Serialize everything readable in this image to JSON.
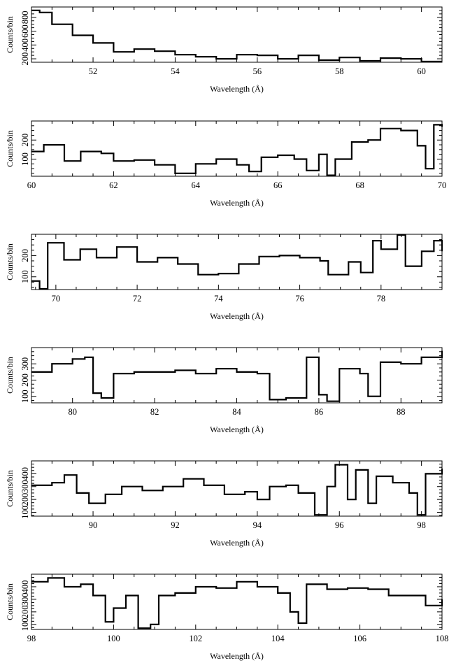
{
  "chart_data": [
    {
      "type": "line",
      "step": true,
      "xlabel": "Wavelength (Å)",
      "ylabel": "Counts/bin",
      "xlim": [
        50.5,
        60.5
      ],
      "ylim": [
        150,
        950
      ],
      "xticks": [
        52,
        54,
        56,
        58,
        60
      ],
      "yticks": [
        200,
        400,
        600,
        800
      ],
      "ytick_labels": [
        "200",
        "400",
        "600",
        "800"
      ],
      "series": [
        {
          "points": [
            [
              50.5,
              900
            ],
            [
              50.7,
              870
            ],
            [
              51.0,
              700
            ],
            [
              51.5,
              540
            ],
            [
              52.0,
              430
            ],
            [
              52.5,
              300
            ],
            [
              53.0,
              340
            ],
            [
              53.5,
              310
            ],
            [
              54.0,
              260
            ],
            [
              54.5,
              230
            ],
            [
              55.0,
              200
            ],
            [
              55.5,
              260
            ],
            [
              56.0,
              250
            ],
            [
              56.5,
              200
            ],
            [
              57.0,
              250
            ],
            [
              57.5,
              180
            ],
            [
              58.0,
              220
            ],
            [
              58.5,
              170
            ],
            [
              59.0,
              210
            ],
            [
              59.5,
              200
            ],
            [
              60.0,
              150
            ],
            [
              60.5,
              160
            ]
          ]
        }
      ]
    },
    {
      "type": "line",
      "step": true,
      "xlabel": "Wavelength (Å)",
      "ylabel": "Counts/bin",
      "xlim": [
        60,
        70
      ],
      "ylim": [
        10,
        300
      ],
      "xticks": [
        60,
        62,
        64,
        66,
        68,
        70
      ],
      "yticks": [
        100,
        200
      ],
      "ytick_labels": [
        "100",
        "200"
      ],
      "series": [
        {
          "points": [
            [
              60.0,
              140
            ],
            [
              60.3,
              175
            ],
            [
              60.8,
              90
            ],
            [
              61.2,
              140
            ],
            [
              61.7,
              130
            ],
            [
              62.0,
              90
            ],
            [
              62.5,
              95
            ],
            [
              63.0,
              70
            ],
            [
              63.5,
              25
            ],
            [
              64.0,
              75
            ],
            [
              64.5,
              100
            ],
            [
              65.0,
              70
            ],
            [
              65.3,
              35
            ],
            [
              65.6,
              110
            ],
            [
              66.0,
              120
            ],
            [
              66.4,
              100
            ],
            [
              66.7,
              40
            ],
            [
              67.0,
              125
            ],
            [
              67.2,
              15
            ],
            [
              67.4,
              100
            ],
            [
              67.8,
              190
            ],
            [
              68.2,
              200
            ],
            [
              68.5,
              260
            ],
            [
              69.0,
              250
            ],
            [
              69.4,
              170
            ],
            [
              69.6,
              50
            ],
            [
              69.8,
              280
            ],
            [
              70.0,
              270
            ]
          ]
        }
      ]
    },
    {
      "type": "line",
      "step": true,
      "xlabel": "Wavelength (Å)",
      "ylabel": "Counts/bin",
      "xlim": [
        69.4,
        79.5
      ],
      "ylim": [
        40,
        300
      ],
      "xticks": [
        70,
        72,
        74,
        76,
        78
      ],
      "yticks": [
        100,
        200
      ],
      "ytick_labels": [
        "100",
        "200"
      ],
      "series": [
        {
          "points": [
            [
              69.4,
              80
            ],
            [
              69.6,
              40
            ],
            [
              69.8,
              260
            ],
            [
              70.2,
              180
            ],
            [
              70.6,
              230
            ],
            [
              71.0,
              190
            ],
            [
              71.5,
              240
            ],
            [
              72.0,
              170
            ],
            [
              72.5,
              190
            ],
            [
              73.0,
              160
            ],
            [
              73.5,
              110
            ],
            [
              74.0,
              115
            ],
            [
              74.5,
              160
            ],
            [
              75.0,
              195
            ],
            [
              75.5,
              200
            ],
            [
              76.0,
              190
            ],
            [
              76.5,
              175
            ],
            [
              76.7,
              110
            ],
            [
              77.2,
              170
            ],
            [
              77.5,
              120
            ],
            [
              77.8,
              270
            ],
            [
              78.0,
              230
            ],
            [
              78.4,
              300
            ],
            [
              78.6,
              150
            ],
            [
              79.0,
              220
            ],
            [
              79.3,
              270
            ],
            [
              79.5,
              220
            ]
          ]
        }
      ]
    },
    {
      "type": "line",
      "step": true,
      "xlabel": "Wavelength (Å)",
      "ylabel": "Counts/bin",
      "xlim": [
        79,
        89
      ],
      "ylim": [
        60,
        400
      ],
      "xticks": [
        80,
        82,
        84,
        86,
        88
      ],
      "yticks": [
        100,
        200,
        300
      ],
      "ytick_labels": [
        "100",
        "200",
        "300"
      ],
      "series": [
        {
          "points": [
            [
              79.0,
              250
            ],
            [
              79.5,
              300
            ],
            [
              80.0,
              330
            ],
            [
              80.3,
              340
            ],
            [
              80.5,
              120
            ],
            [
              80.7,
              90
            ],
            [
              81.0,
              240
            ],
            [
              81.5,
              250
            ],
            [
              82.0,
              250
            ],
            [
              82.5,
              260
            ],
            [
              83.0,
              240
            ],
            [
              83.5,
              270
            ],
            [
              84.0,
              250
            ],
            [
              84.5,
              240
            ],
            [
              84.8,
              80
            ],
            [
              85.2,
              90
            ],
            [
              85.7,
              340
            ],
            [
              86.0,
              110
            ],
            [
              86.2,
              70
            ],
            [
              86.5,
              270
            ],
            [
              87.0,
              240
            ],
            [
              87.2,
              100
            ],
            [
              87.5,
              310
            ],
            [
              88.0,
              300
            ],
            [
              88.5,
              340
            ],
            [
              89.0,
              380
            ]
          ]
        }
      ]
    },
    {
      "type": "line",
      "step": true,
      "xlabel": "Wavelength (Å)",
      "ylabel": "Counts/bin",
      "xlim": [
        88.5,
        98.5
      ],
      "ylim": [
        70,
        500
      ],
      "xticks": [
        90,
        92,
        94,
        96,
        98
      ],
      "yticks": [
        100,
        200,
        300,
        400
      ],
      "ytick_labels": [
        "100",
        "200",
        "300",
        "400"
      ],
      "series": [
        {
          "points": [
            [
              88.5,
              310
            ],
            [
              89.0,
              330
            ],
            [
              89.3,
              390
            ],
            [
              89.6,
              250
            ],
            [
              89.9,
              170
            ],
            [
              90.3,
              240
            ],
            [
              90.7,
              300
            ],
            [
              91.2,
              270
            ],
            [
              91.7,
              300
            ],
            [
              92.2,
              360
            ],
            [
              92.7,
              310
            ],
            [
              93.2,
              240
            ],
            [
              93.7,
              260
            ],
            [
              94.0,
              200
            ],
            [
              94.3,
              300
            ],
            [
              94.7,
              310
            ],
            [
              95.0,
              250
            ],
            [
              95.4,
              80
            ],
            [
              95.7,
              300
            ],
            [
              95.9,
              470
            ],
            [
              96.2,
              200
            ],
            [
              96.4,
              430
            ],
            [
              96.7,
              170
            ],
            [
              96.9,
              380
            ],
            [
              97.3,
              330
            ],
            [
              97.7,
              250
            ],
            [
              97.9,
              80
            ],
            [
              98.1,
              400
            ],
            [
              98.5,
              440
            ]
          ]
        }
      ]
    },
    {
      "type": "line",
      "step": true,
      "xlabel": "Wavelength (Å)",
      "ylabel": "Counts/bin",
      "xlim": [
        98,
        108
      ],
      "ylim": [
        60,
        500
      ],
      "xticks": [
        98,
        100,
        102,
        104,
        106,
        108
      ],
      "yticks": [
        100,
        200,
        300,
        400
      ],
      "ytick_labels": [
        "100",
        "200",
        "300",
        "400"
      ],
      "series": [
        {
          "points": [
            [
              98.0,
              440
            ],
            [
              98.4,
              470
            ],
            [
              98.8,
              400
            ],
            [
              99.2,
              420
            ],
            [
              99.5,
              330
            ],
            [
              99.8,
              120
            ],
            [
              100.0,
              230
            ],
            [
              100.3,
              330
            ],
            [
              100.6,
              70
            ],
            [
              100.9,
              100
            ],
            [
              101.1,
              330
            ],
            [
              101.5,
              350
            ],
            [
              102.0,
              400
            ],
            [
              102.5,
              390
            ],
            [
              103.0,
              440
            ],
            [
              103.5,
              400
            ],
            [
              104.0,
              350
            ],
            [
              104.3,
              200
            ],
            [
              104.5,
              110
            ],
            [
              104.7,
              420
            ],
            [
              105.2,
              380
            ],
            [
              105.7,
              390
            ],
            [
              106.2,
              380
            ],
            [
              106.7,
              330
            ],
            [
              107.2,
              330
            ],
            [
              107.6,
              250
            ],
            [
              108.0,
              300
            ]
          ]
        }
      ]
    }
  ]
}
